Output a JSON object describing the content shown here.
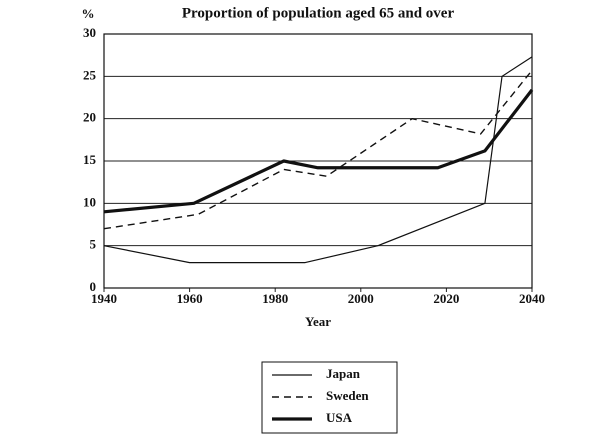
{
  "chart_data": {
    "type": "line",
    "title": "Proportion of population aged 65 and over",
    "y_label": "%",
    "x_label": "Year",
    "xlim": [
      1940,
      2040
    ],
    "xticks": [
      1940,
      1960,
      1980,
      2000,
      2020,
      2040
    ],
    "ylim": [
      0,
      30
    ],
    "yticks": [
      0,
      5,
      10,
      15,
      20,
      25,
      30
    ],
    "grid": true,
    "legend": "bottom",
    "series": [
      {
        "name": "Japan",
        "color": "#111111",
        "style": "thin",
        "x": [
          1940,
          1960,
          1987,
          2004,
          2029,
          2033,
          2040
        ],
        "values": [
          5,
          3,
          3,
          5,
          10,
          25,
          27.3
        ]
      },
      {
        "name": "Sweden",
        "color": "#111111",
        "style": "dashed",
        "x": [
          1940,
          1962,
          1982,
          1992,
          2012,
          2028,
          2040
        ],
        "values": [
          7,
          8.7,
          14,
          13.2,
          20,
          18.2,
          25.7
        ]
      },
      {
        "name": "USA",
        "color": "#111111",
        "style": "thick",
        "x": [
          1940,
          1961,
          1982,
          1990,
          2018,
          2029,
          2040
        ],
        "values": [
          9,
          10,
          15,
          14.2,
          14.2,
          16.2,
          23.4
        ]
      }
    ]
  }
}
